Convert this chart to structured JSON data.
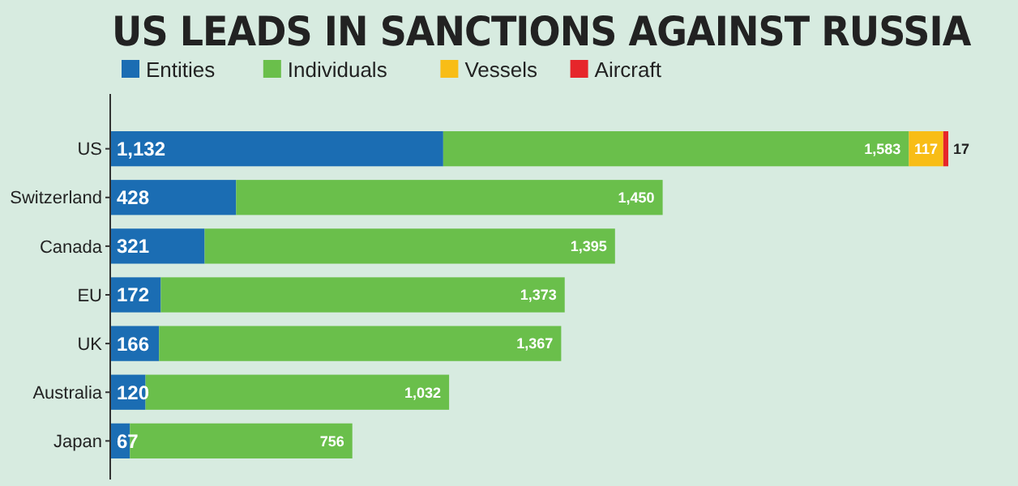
{
  "chart_data": {
    "type": "bar",
    "orientation": "horizontal",
    "stacked": true,
    "title": "US LEADS IN SANCTIONS AGAINST RUSSIA",
    "categories": [
      "US",
      "Switzerland",
      "Canada",
      "EU",
      "UK",
      "Australia",
      "Japan"
    ],
    "series": [
      {
        "name": "Entities",
        "color": "#1b6db3",
        "values": [
          1132,
          428,
          321,
          172,
          166,
          120,
          67
        ],
        "value_labels": [
          "1,132",
          "428",
          "321",
          "172",
          "166",
          "120",
          "67"
        ]
      },
      {
        "name": "Individuals",
        "color": "#6abf4b",
        "values": [
          1583,
          1450,
          1395,
          1373,
          1367,
          1032,
          756
        ],
        "value_labels": [
          "1,583",
          "1,450",
          "1,395",
          "1,373",
          "1,367",
          "1,032",
          "756"
        ]
      },
      {
        "name": "Vessels",
        "color": "#f8bd16",
        "values": [
          117,
          null,
          null,
          null,
          null,
          null,
          null
        ],
        "value_labels": [
          "117",
          null,
          null,
          null,
          null,
          null,
          null
        ]
      },
      {
        "name": "Aircraft",
        "color": "#e6262b",
        "values": [
          17,
          null,
          null,
          null,
          null,
          null,
          null
        ],
        "value_labels": [
          "17",
          null,
          null,
          null,
          null,
          null,
          null
        ]
      }
    ],
    "legend": "top left",
    "grid": false
  }
}
